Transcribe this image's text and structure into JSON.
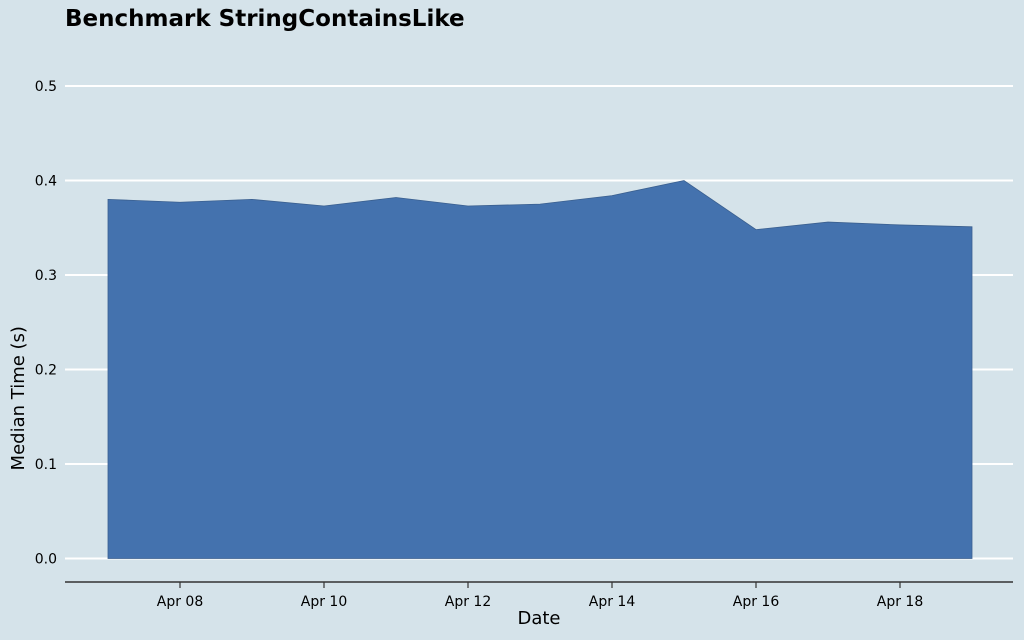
{
  "chart_data": {
    "type": "area",
    "title": "Benchmark StringContainsLike",
    "xlabel": "Date",
    "ylabel": "Median Time (s)",
    "x": [
      "2024-04-07",
      "2024-04-08",
      "2024-04-09",
      "2024-04-10",
      "2024-04-11",
      "2024-04-12",
      "2024-04-13",
      "2024-04-14",
      "2024-04-15",
      "2024-04-16",
      "2024-04-17",
      "2024-04-18",
      "2024-04-19"
    ],
    "series": [
      {
        "values": [
          0.38,
          0.377,
          0.38,
          0.373,
          0.382,
          0.373,
          0.375,
          0.384,
          0.4,
          0.348,
          0.356,
          0.353,
          0.351
        ]
      }
    ],
    "xticks": [
      "Apr 08",
      "Apr 10",
      "Apr 12",
      "Apr 14",
      "Apr 16",
      "Apr 18"
    ],
    "xtick_dates": [
      "2024-04-08",
      "2024-04-10",
      "2024-04-12",
      "2024-04-14",
      "2024-04-16",
      "2024-04-18"
    ],
    "yticks": [
      "0.0",
      "0.1",
      "0.2",
      "0.3",
      "0.4",
      "0.5"
    ],
    "ytick_values": [
      0.0,
      0.1,
      0.2,
      0.3,
      0.4,
      0.5
    ],
    "ylim": [
      0,
      0.5
    ],
    "grid": true,
    "colors": {
      "background": "#d5e3ea",
      "area": "#4472ae",
      "grid": "#ffffff",
      "axis": "#333333"
    }
  }
}
